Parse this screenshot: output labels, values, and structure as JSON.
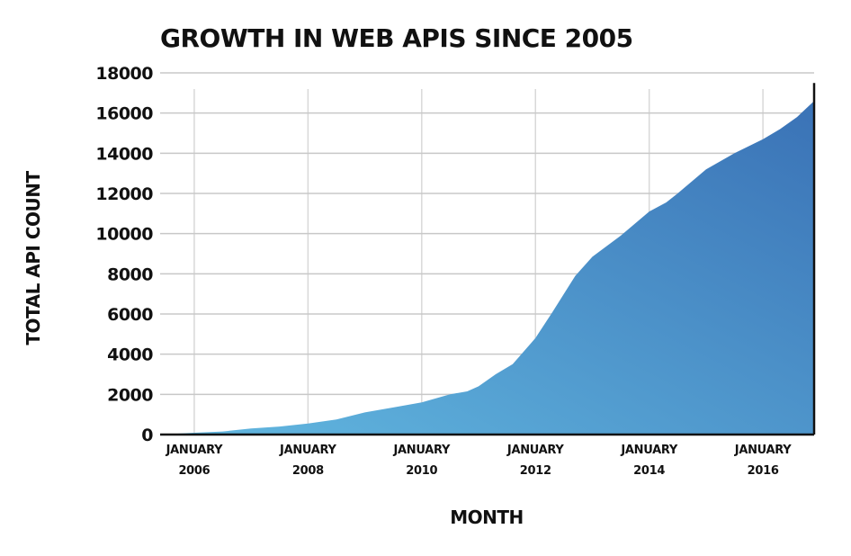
{
  "chart_data": {
    "type": "area",
    "title": "GROWTH IN WEB APIS SINCE 2005",
    "xlabel": "MONTH",
    "ylabel": "TOTAL API COUNT",
    "ylim": [
      0,
      18000
    ],
    "yticks": [
      0,
      2000,
      4000,
      6000,
      8000,
      10000,
      12000,
      14000,
      16000,
      18000
    ],
    "xticks": [
      {
        "value": 2006.0,
        "line1": "JANUARY",
        "line2": "2006"
      },
      {
        "value": 2008.0,
        "line1": "JANUARY",
        "line2": "2008"
      },
      {
        "value": 2010.0,
        "line1": "JANUARY",
        "line2": "2010"
      },
      {
        "value": 2012.0,
        "line1": "JANUARY",
        "line2": "2012"
      },
      {
        "value": 2014.0,
        "line1": "JANUARY",
        "line2": "2014"
      },
      {
        "value": 2016.0,
        "line1": "JANUARY",
        "line2": "2016"
      }
    ],
    "xlim": [
      2005.4,
      2016.9
    ],
    "grid": true,
    "colors": {
      "area_start": "#62b8e0",
      "area_end": "#3a72b6",
      "grid": "#c8c8c8"
    },
    "series": [
      {
        "x": [
          2005.4,
          2006.0,
          2006.5,
          2007.0,
          2007.5,
          2008.0,
          2008.5,
          2009.0,
          2009.5,
          2010.0,
          2010.5,
          2010.8,
          2011.0,
          2011.3,
          2011.6,
          2012.0,
          2012.3,
          2012.7,
          2013.0,
          2013.5,
          2014.0,
          2014.3,
          2014.5,
          2015.0,
          2015.5,
          2016.0,
          2016.3,
          2016.6,
          2016.9
        ],
        "y": [
          0,
          90,
          150,
          300,
          400,
          550,
          750,
          1100,
          1350,
          1600,
          2000,
          2150,
          2400,
          3000,
          3500,
          4800,
          6100,
          7900,
          8850,
          9900,
          11100,
          11550,
          12000,
          13200,
          14000,
          14700,
          15200,
          15800,
          16600
        ]
      }
    ]
  }
}
